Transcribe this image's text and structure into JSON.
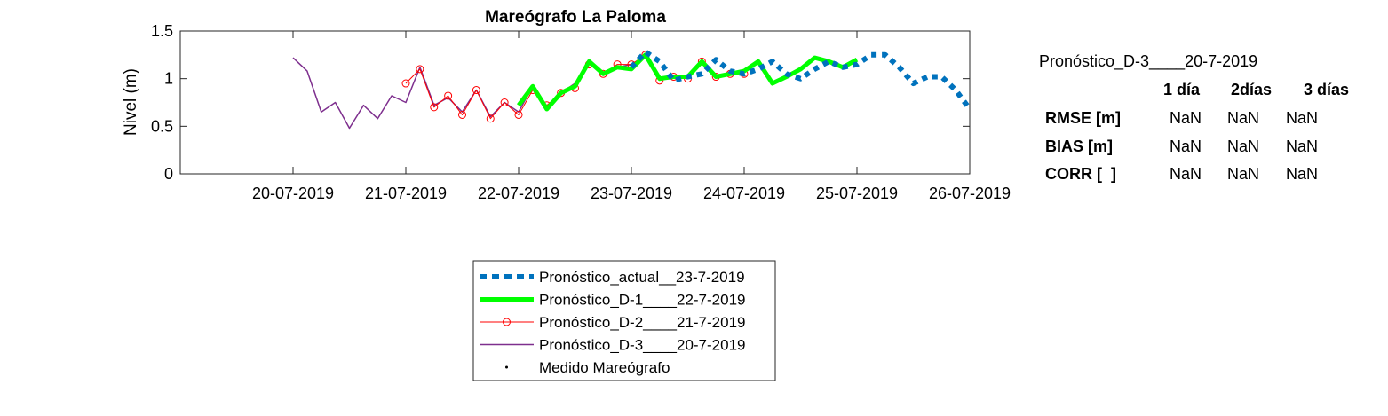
{
  "chart_data": {
    "type": "line",
    "title": "Mareógrafo La Paloma",
    "xlabel": "",
    "ylabel": "Nivel (m)",
    "xlim": [
      "2019-07-19",
      "2019-07-26"
    ],
    "ylim": [
      0,
      1.5
    ],
    "x_tick_labels": [
      "20-07-2019",
      "21-07-2019",
      "22-07-2019",
      "23-07-2019",
      "24-07-2019",
      "25-07-2019",
      "26-07-2019"
    ],
    "y_tick_labels": [
      "0",
      "0.5",
      "1",
      "1.5"
    ],
    "grid": false,
    "legend_position": "below",
    "series": [
      {
        "name": "Pronóstico_actual__23-7-2019",
        "color": "#0072BD",
        "style": "dotted-thick",
        "x": [
          "2019-07-23 00:00",
          "2019-07-23 03:00",
          "2019-07-23 06:00",
          "2019-07-23 09:00",
          "2019-07-23 12:00",
          "2019-07-23 15:00",
          "2019-07-23 18:00",
          "2019-07-23 21:00",
          "2019-07-24 00:00",
          "2019-07-24 03:00",
          "2019-07-24 06:00",
          "2019-07-24 09:00",
          "2019-07-24 12:00",
          "2019-07-24 15:00",
          "2019-07-24 18:00",
          "2019-07-24 21:00",
          "2019-07-25 00:00",
          "2019-07-25 03:00",
          "2019-07-25 06:00",
          "2019-07-25 09:00",
          "2019-07-25 12:00",
          "2019-07-25 15:00",
          "2019-07-25 18:00",
          "2019-07-25 21:00",
          "2019-07-26 00:00"
        ],
        "values": [
          1.12,
          1.28,
          1.18,
          0.98,
          1.02,
          1.05,
          1.2,
          1.08,
          1.05,
          1.1,
          1.18,
          1.05,
          1.0,
          1.1,
          1.18,
          1.12,
          1.15,
          1.25,
          1.25,
          1.12,
          0.95,
          1.02,
          1.02,
          0.88,
          0.68
        ]
      },
      {
        "name": "Pronóstico_D-1____22-7-2019",
        "color": "#00FF00",
        "style": "solid-thick",
        "x": [
          "2019-07-22 00:00",
          "2019-07-22 03:00",
          "2019-07-22 06:00",
          "2019-07-22 09:00",
          "2019-07-22 12:00",
          "2019-07-22 15:00",
          "2019-07-22 18:00",
          "2019-07-22 21:00",
          "2019-07-23 00:00",
          "2019-07-23 03:00",
          "2019-07-23 06:00",
          "2019-07-23 09:00",
          "2019-07-23 12:00",
          "2019-07-23 15:00",
          "2019-07-23 18:00",
          "2019-07-23 21:00",
          "2019-07-24 00:00",
          "2019-07-24 03:00",
          "2019-07-24 06:00",
          "2019-07-24 09:00",
          "2019-07-24 12:00",
          "2019-07-24 15:00",
          "2019-07-24 18:00",
          "2019-07-24 21:00",
          "2019-07-25 00:00"
        ],
        "values": [
          0.72,
          0.92,
          0.68,
          0.85,
          0.92,
          1.18,
          1.05,
          1.12,
          1.1,
          1.25,
          1.0,
          1.02,
          1.02,
          1.18,
          1.02,
          1.05,
          1.08,
          1.18,
          0.95,
          1.02,
          1.1,
          1.22,
          1.18,
          1.12,
          1.2
        ]
      },
      {
        "name": "Pronóstico_D-2____21-7-2019",
        "color": "#FF0000",
        "style": "line-circle",
        "x": [
          "2019-07-21 00:00",
          "2019-07-21 03:00",
          "2019-07-21 06:00",
          "2019-07-21 09:00",
          "2019-07-21 12:00",
          "2019-07-21 15:00",
          "2019-07-21 18:00",
          "2019-07-21 21:00",
          "2019-07-22 00:00",
          "2019-07-22 03:00",
          "2019-07-22 06:00",
          "2019-07-22 09:00",
          "2019-07-22 12:00",
          "2019-07-22 15:00",
          "2019-07-22 18:00",
          "2019-07-22 21:00",
          "2019-07-23 00:00",
          "2019-07-23 03:00",
          "2019-07-23 06:00",
          "2019-07-23 09:00",
          "2019-07-23 12:00",
          "2019-07-23 15:00",
          "2019-07-23 18:00",
          "2019-07-23 21:00",
          "2019-07-24 00:00"
        ],
        "values": [
          0.95,
          1.1,
          0.7,
          0.82,
          0.62,
          0.88,
          0.58,
          0.75,
          0.62,
          0.88,
          0.72,
          0.85,
          0.9,
          1.15,
          1.05,
          1.15,
          1.15,
          1.25,
          0.98,
          1.02,
          1.0,
          1.18,
          1.02,
          1.05,
          1.05
        ]
      },
      {
        "name": "Pronóstico_D-3____20-7-2019",
        "color": "#7E2F8E",
        "style": "solid",
        "x": [
          "2019-07-20 00:00",
          "2019-07-20 03:00",
          "2019-07-20 06:00",
          "2019-07-20 09:00",
          "2019-07-20 12:00",
          "2019-07-20 15:00",
          "2019-07-20 18:00",
          "2019-07-20 21:00",
          "2019-07-21 00:00",
          "2019-07-21 03:00",
          "2019-07-21 06:00",
          "2019-07-21 09:00",
          "2019-07-21 12:00",
          "2019-07-21 15:00",
          "2019-07-21 18:00",
          "2019-07-21 21:00",
          "2019-07-22 00:00",
          "2019-07-22 03:00",
          "2019-07-22 06:00",
          "2019-07-22 09:00",
          "2019-07-22 12:00",
          "2019-07-22 15:00",
          "2019-07-22 18:00",
          "2019-07-22 21:00",
          "2019-07-23 00:00"
        ],
        "values": [
          1.22,
          1.08,
          0.65,
          0.75,
          0.48,
          0.72,
          0.58,
          0.82,
          0.75,
          1.12,
          0.72,
          0.8,
          0.65,
          0.88,
          0.6,
          0.75,
          0.65,
          0.92,
          0.7,
          0.85,
          0.95,
          1.18,
          1.05,
          1.12,
          1.15
        ]
      },
      {
        "name": "Medido Mareógrafo",
        "color": "#000000",
        "style": "point",
        "x": [],
        "values": []
      }
    ]
  },
  "stats_table": {
    "title": "Pronóstico_D-3____20-7-2019",
    "columns": [
      "1 día",
      "2días",
      "3 días"
    ],
    "rows": [
      {
        "label": "RMSE [m]",
        "values": [
          "NaN",
          "NaN",
          "NaN"
        ]
      },
      {
        "label": "BIAS [m]",
        "values": [
          "NaN",
          "NaN",
          "NaN"
        ]
      },
      {
        "label": "CORR [  ]",
        "values": [
          "NaN",
          "NaN",
          "NaN"
        ]
      }
    ]
  }
}
